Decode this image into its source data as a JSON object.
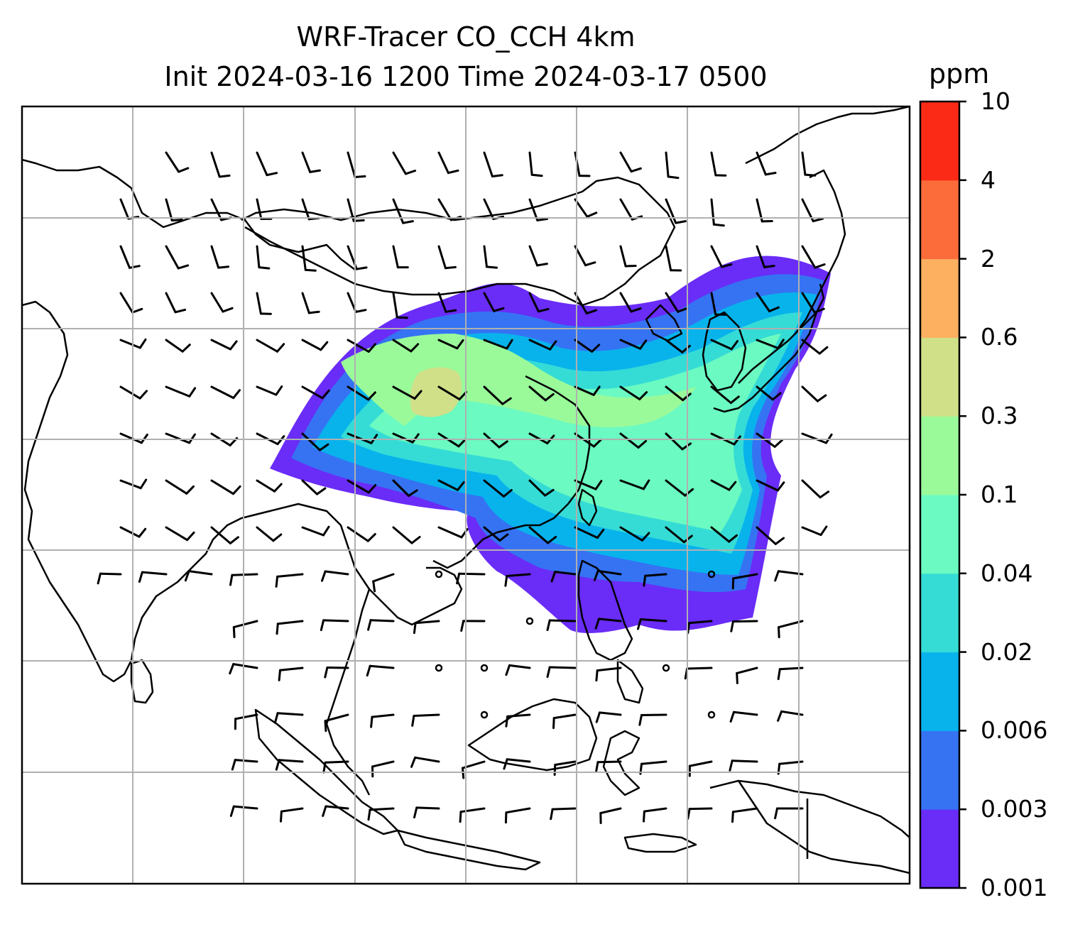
{
  "title": {
    "line1": "WRF-Tracer CO_CCH 4km",
    "line2": "Init 2024-03-16 1200 Time 2024-03-17 0500"
  },
  "colorbar": {
    "unit": "ppm",
    "tick_labels": [
      "0.001",
      "0.003",
      "0.006",
      "0.02",
      "0.04",
      "0.1",
      "0.3",
      "0.6",
      "2",
      "4",
      "10"
    ],
    "colors": [
      "#6a2cf7",
      "#3573f3",
      "#08b3ec",
      "#35dcd6",
      "#6bfac1",
      "#9afa9a",
      "#d0e088",
      "#fcb060",
      "#fc6c3a",
      "#fa2a16"
    ]
  },
  "map": {
    "background": "#ffffff",
    "gridline_color": "#b0b0b0",
    "coastline_color": "#000000",
    "wind_barb_color": "#000000"
  }
}
